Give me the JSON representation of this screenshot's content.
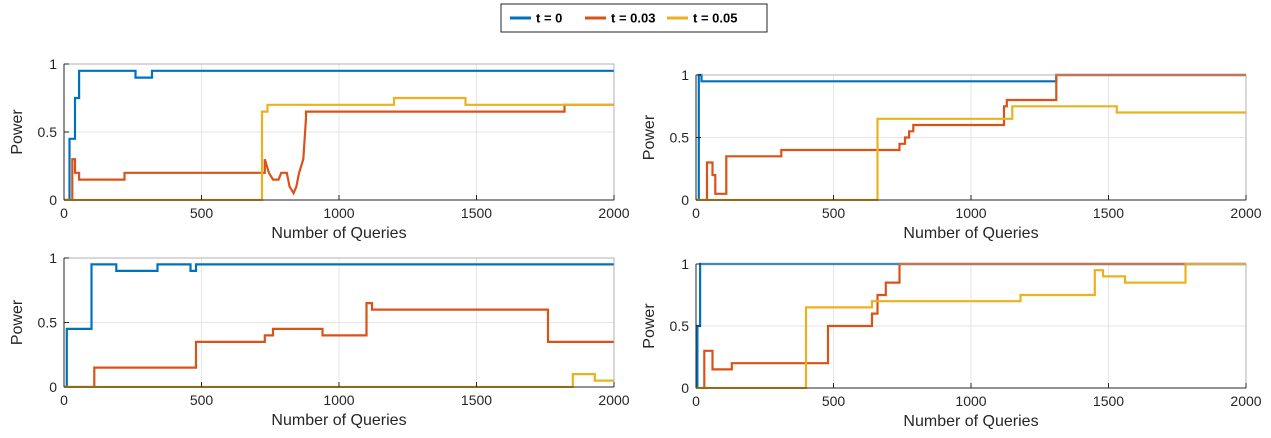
{
  "colors": {
    "t0": "#0072BD",
    "t003": "#D95319",
    "t005": "#EDB120",
    "grid": "#e6e6e6",
    "axis": "#262626"
  },
  "legend": {
    "entries": [
      "t = 0",
      "t = 0.03",
      "t = 0.05"
    ]
  },
  "chart_data": [
    {
      "type": "line",
      "position": "top-left",
      "xlabel": "Number of Queries",
      "ylabel": "Power",
      "xlim": [
        0,
        2000
      ],
      "ylim": [
        0,
        1
      ],
      "xticks": [
        "0",
        "500",
        "1000",
        "1500",
        "2000"
      ],
      "yticks": [
        "0",
        "0.5",
        "1"
      ],
      "grid": true,
      "series": [
        {
          "name": "t = 0",
          "color": "#0072BD",
          "x": [
            0,
            20,
            20,
            40,
            40,
            55,
            55,
            260,
            260,
            320,
            320,
            330,
            330,
            2000
          ],
          "y": [
            0,
            0,
            0.45,
            0.45,
            0.75,
            0.75,
            0.95,
            0.95,
            0.9,
            0.9,
            0.95,
            0.95,
            0.95,
            0.95
          ]
        },
        {
          "name": "t = 0.03",
          "color": "#D95319",
          "x": [
            0,
            30,
            30,
            40,
            40,
            55,
            55,
            220,
            220,
            290,
            290,
            730,
            730,
            745,
            760,
            780,
            790,
            810,
            820,
            835,
            845,
            855,
            870,
            880,
            880,
            1820,
            1820,
            2000
          ],
          "y": [
            0,
            0,
            0.3,
            0.3,
            0.2,
            0.2,
            0.15,
            0.15,
            0.2,
            0.2,
            0.2,
            0.2,
            0.3,
            0.2,
            0.15,
            0.15,
            0.2,
            0.2,
            0.1,
            0.05,
            0.1,
            0.2,
            0.3,
            0.6,
            0.65,
            0.65,
            0.7,
            0.7
          ]
        },
        {
          "name": "t = 0.05",
          "color": "#EDB120",
          "x": [
            0,
            720,
            720,
            740,
            740,
            860,
            860,
            1200,
            1200,
            1460,
            1460,
            1840,
            1840,
            2000
          ],
          "y": [
            0,
            0,
            0.65,
            0.65,
            0.7,
            0.7,
            0.7,
            0.7,
            0.75,
            0.75,
            0.7,
            0.7,
            0.7,
            0.7
          ]
        }
      ]
    },
    {
      "type": "line",
      "position": "top-right",
      "xlabel": "Number of Queries",
      "ylabel": "Power",
      "xlim": [
        0,
        2000
      ],
      "ylim": [
        0,
        1
      ],
      "xticks": [
        "0",
        "500",
        "1000",
        "1500",
        "2000"
      ],
      "yticks": [
        "0",
        "0.5",
        "1"
      ],
      "grid": true,
      "series": [
        {
          "name": "t = 0",
          "color": "#0072BD",
          "x": [
            0,
            10,
            10,
            20,
            20,
            1310,
            1310,
            2000
          ],
          "y": [
            0,
            0,
            1,
            1,
            0.95,
            0.95,
            1,
            1
          ]
        },
        {
          "name": "t = 0.03",
          "color": "#D95319",
          "x": [
            0,
            40,
            40,
            60,
            60,
            70,
            70,
            90,
            90,
            110,
            110,
            310,
            310,
            740,
            740,
            760,
            760,
            775,
            775,
            790,
            790,
            840,
            840,
            1120,
            1120,
            1130,
            1130,
            1310,
            1310,
            2000
          ],
          "y": [
            0,
            0,
            0.3,
            0.3,
            0.2,
            0.2,
            0.05,
            0.05,
            0.05,
            0.05,
            0.35,
            0.35,
            0.4,
            0.4,
            0.45,
            0.45,
            0.5,
            0.5,
            0.55,
            0.55,
            0.6,
            0.6,
            0.6,
            0.6,
            0.75,
            0.75,
            0.8,
            0.8,
            1,
            1
          ]
        },
        {
          "name": "t = 0.05",
          "color": "#EDB120",
          "x": [
            0,
            660,
            660,
            980,
            980,
            1150,
            1150,
            1530,
            1530,
            2000
          ],
          "y": [
            0,
            0,
            0.65,
            0.65,
            0.65,
            0.65,
            0.75,
            0.75,
            0.7,
            0.7
          ]
        }
      ]
    },
    {
      "type": "line",
      "position": "bottom-left",
      "xlabel": "Number of Queries",
      "ylabel": "Power",
      "xlim": [
        0,
        2000
      ],
      "ylim": [
        0,
        1
      ],
      "xticks": [
        "0",
        "500",
        "1000",
        "1500",
        "2000"
      ],
      "yticks": [
        "0",
        "0.5",
        "1"
      ],
      "grid": true,
      "series": [
        {
          "name": "t = 0",
          "color": "#0072BD",
          "x": [
            0,
            10,
            10,
            100,
            100,
            190,
            190,
            340,
            340,
            460,
            460,
            480,
            480,
            2000
          ],
          "y": [
            0,
            0,
            0.45,
            0.45,
            0.95,
            0.95,
            0.9,
            0.9,
            0.95,
            0.95,
            0.9,
            0.9,
            0.95,
            0.95
          ]
        },
        {
          "name": "t = 0.03",
          "color": "#D95319",
          "x": [
            0,
            110,
            110,
            480,
            480,
            730,
            730,
            760,
            760,
            780,
            780,
            940,
            940,
            1100,
            1100,
            1120,
            1120,
            1760,
            1760,
            2000
          ],
          "y": [
            0,
            0,
            0.15,
            0.15,
            0.35,
            0.35,
            0.4,
            0.4,
            0.45,
            0.45,
            0.45,
            0.45,
            0.4,
            0.4,
            0.65,
            0.65,
            0.6,
            0.6,
            0.35,
            0.35
          ]
        },
        {
          "name": "t = 0.05",
          "color": "#EDB120",
          "x": [
            0,
            1850,
            1850,
            1930,
            1930,
            2000
          ],
          "y": [
            0,
            0,
            0.1,
            0.1,
            0.05,
            0.05
          ]
        }
      ]
    },
    {
      "type": "line",
      "position": "bottom-right",
      "xlabel": "Number of Queries",
      "ylabel": "Power",
      "xlim": [
        0,
        2000
      ],
      "ylim": [
        0,
        1
      ],
      "xticks": [
        "0",
        "500",
        "1000",
        "1500",
        "2000"
      ],
      "yticks": [
        "0",
        "0.5",
        "1"
      ],
      "grid": true,
      "series": [
        {
          "name": "t = 0",
          "color": "#0072BD",
          "x": [
            0,
            5,
            5,
            15,
            15,
            2000
          ],
          "y": [
            0,
            0,
            0.5,
            0.5,
            1,
            1
          ]
        },
        {
          "name": "t = 0.03",
          "color": "#D95319",
          "x": [
            0,
            30,
            30,
            60,
            60,
            130,
            130,
            480,
            480,
            640,
            640,
            660,
            660,
            690,
            690,
            740,
            740,
            2000
          ],
          "y": [
            0,
            0,
            0.3,
            0.3,
            0.15,
            0.15,
            0.2,
            0.2,
            0.5,
            0.5,
            0.6,
            0.6,
            0.75,
            0.75,
            0.85,
            0.85,
            1,
            1
          ]
        },
        {
          "name": "t = 0.05",
          "color": "#EDB120",
          "x": [
            0,
            400,
            400,
            640,
            640,
            1180,
            1180,
            1450,
            1450,
            1480,
            1480,
            1560,
            1560,
            1780,
            1780,
            2000
          ],
          "y": [
            0,
            0,
            0.65,
            0.65,
            0.7,
            0.7,
            0.75,
            0.75,
            0.95,
            0.95,
            0.9,
            0.9,
            0.85,
            0.85,
            1,
            1
          ]
        }
      ]
    }
  ]
}
